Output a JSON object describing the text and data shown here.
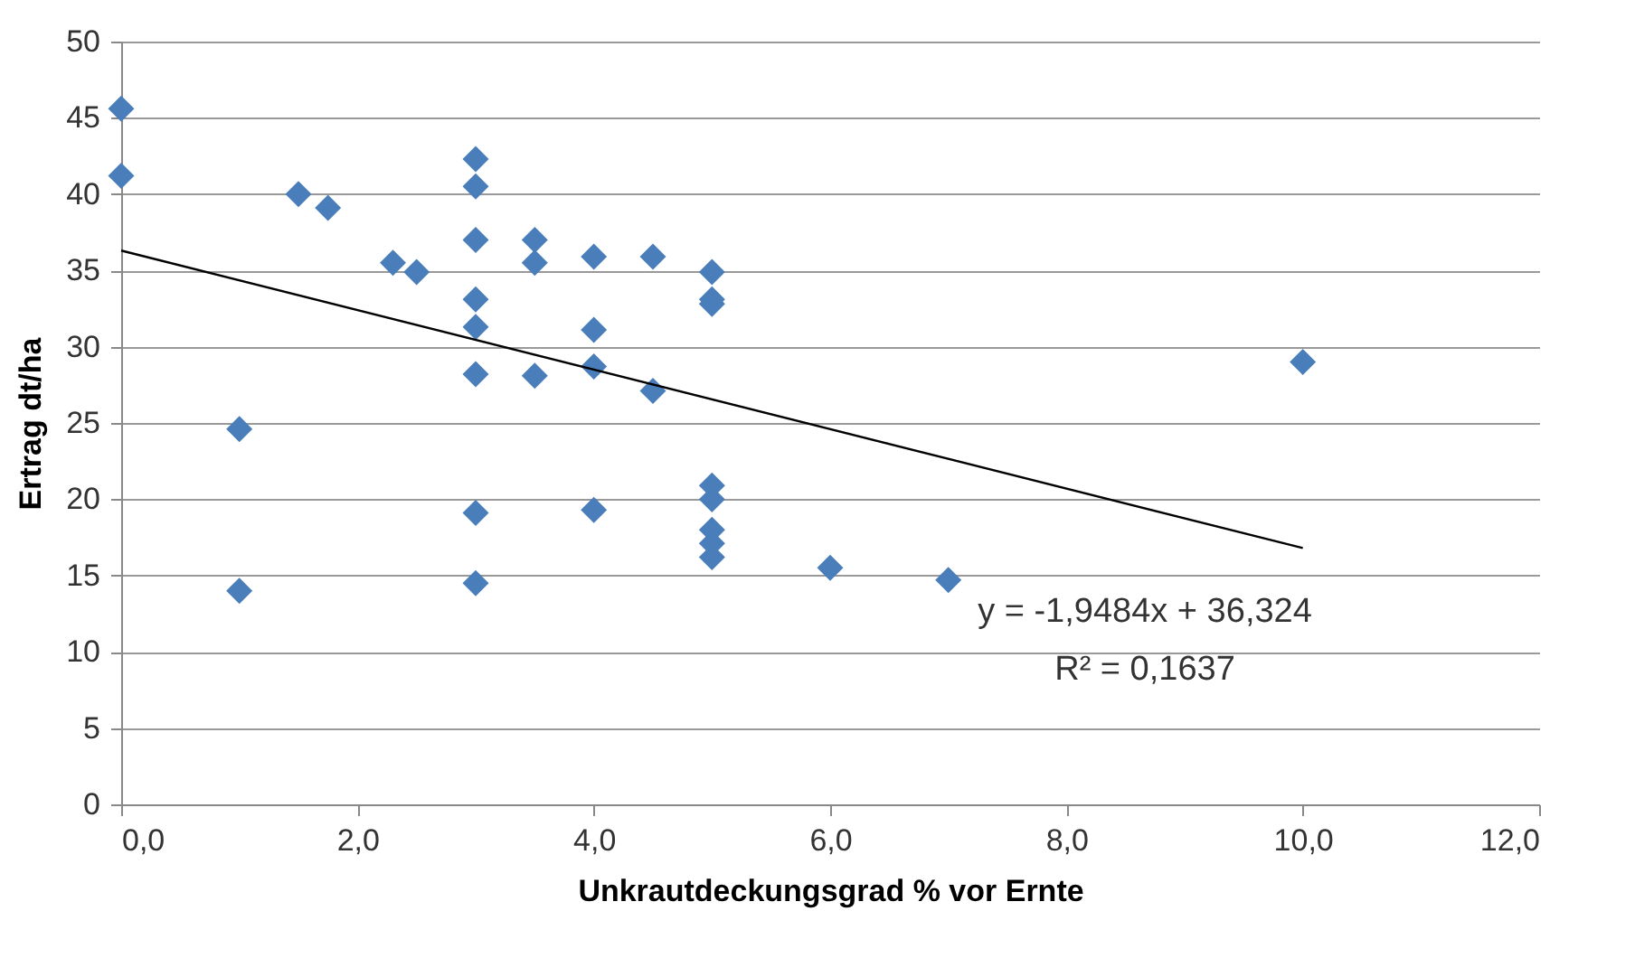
{
  "chart_data": {
    "type": "scatter",
    "xlabel": "Unkrautdeckungsgrad % vor Ernte",
    "ylabel": "Ertrag dt/ha",
    "xlim": [
      0,
      12
    ],
    "xticks": [
      {
        "value": 0,
        "label": "0,0"
      },
      {
        "value": 2,
        "label": "2,0"
      },
      {
        "value": 4,
        "label": "4,0"
      },
      {
        "value": 6,
        "label": "6,0"
      },
      {
        "value": 8,
        "label": "8,0"
      },
      {
        "value": 10,
        "label": "10,0"
      },
      {
        "value": 12,
        "label": "12,0"
      }
    ],
    "ylim": [
      0,
      50
    ],
    "yticks": [
      0,
      5,
      10,
      15,
      20,
      25,
      30,
      35,
      40,
      45,
      50
    ],
    "grid": "y",
    "marker": "diamond",
    "series": [
      {
        "color": "#4a7ebb",
        "x": [
          0,
          0,
          1,
          1,
          1.5,
          1.75,
          2.3,
          2.5,
          3,
          3,
          3,
          3,
          3,
          3,
          3,
          3,
          3.5,
          3.5,
          3.5,
          4,
          4,
          4,
          4,
          4.5,
          4.5,
          5,
          5,
          5,
          5,
          5,
          5,
          5,
          5,
          6,
          7,
          10
        ],
        "values": [
          45.6,
          41.2,
          24.6,
          14,
          40,
          39.1,
          35.5,
          34.9,
          42.3,
          40.5,
          37,
          33.1,
          31.3,
          28.2,
          19.1,
          14.5,
          37,
          35.5,
          28.1,
          35.9,
          31.1,
          28.7,
          19.3,
          35.9,
          27.1,
          34.9,
          33.1,
          32.8,
          20.9,
          20,
          18,
          17.1,
          16.2,
          15.5,
          14.7,
          29
        ]
      },
      {
        "type": "line",
        "color": "#000000",
        "marker": "none",
        "x": [
          0,
          10
        ],
        "values": [
          36.3,
          16.8
        ]
      }
    ],
    "annotations": [
      "y = -1,9484x + 36,324",
      "R² = 0,1637"
    ]
  }
}
